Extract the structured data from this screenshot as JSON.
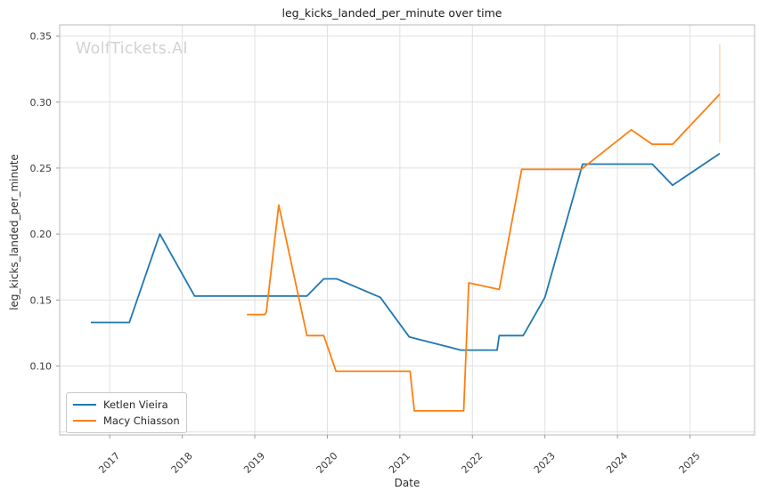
{
  "watermark": "WolfTickets.AI",
  "colors": {
    "series_blue": "#1f77b4",
    "series_orange": "#ff7f0e",
    "grid": "#e0e0e0",
    "spine": "#c4c4c4",
    "tick": "#9a9a9a",
    "tick_text": "#3a3a3a",
    "watermark": "#d2d2d2",
    "background": "#ffffff"
  },
  "chart_data": {
    "type": "line",
    "title": "leg_kicks_landed_per_minute over time",
    "xlabel": "Date",
    "ylabel": "leg_kicks_landed_per_minute",
    "x_unit": "decimal_year",
    "xlim": [
      2016.31,
      2025.89
    ],
    "ylim": [
      0.0477,
      0.3585
    ],
    "grid": true,
    "legend_position": "lower left",
    "x_ticks": [
      {
        "value": 2017,
        "label": "2017"
      },
      {
        "value": 2018,
        "label": "2018"
      },
      {
        "value": 2019,
        "label": "2019"
      },
      {
        "value": 2020,
        "label": "2020"
      },
      {
        "value": 2021,
        "label": "2021"
      },
      {
        "value": 2022,
        "label": "2022"
      },
      {
        "value": 2023,
        "label": "2023"
      },
      {
        "value": 2024,
        "label": "2024"
      },
      {
        "value": 2025,
        "label": "2025"
      }
    ],
    "y_ticks": [
      {
        "value": 0.05,
        "label": ""
      },
      {
        "value": 0.1,
        "label": "0.10"
      },
      {
        "value": 0.15,
        "label": "0.15"
      },
      {
        "value": 0.2,
        "label": "0.20"
      },
      {
        "value": 0.25,
        "label": "0.25"
      },
      {
        "value": 0.3,
        "label": "0.30"
      },
      {
        "value": 0.35,
        "label": "0.35"
      }
    ],
    "series": [
      {
        "name": "Ketlen Vieira",
        "color": "#1f77b4",
        "points": [
          [
            2016.74,
            0.133
          ],
          [
            2017.27,
            0.133
          ],
          [
            2017.69,
            0.2
          ],
          [
            2018.17,
            0.153
          ],
          [
            2019.72,
            0.153
          ],
          [
            2019.95,
            0.166
          ],
          [
            2020.13,
            0.166
          ],
          [
            2020.73,
            0.152
          ],
          [
            2021.13,
            0.122
          ],
          [
            2021.84,
            0.112
          ],
          [
            2022.34,
            0.112
          ],
          [
            2022.37,
            0.123
          ],
          [
            2022.7,
            0.123
          ],
          [
            2023.0,
            0.152
          ],
          [
            2023.52,
            0.253
          ],
          [
            2024.48,
            0.253
          ],
          [
            2024.76,
            0.237
          ],
          [
            2025.41,
            0.261
          ]
        ]
      },
      {
        "name": "Macy Chiasson",
        "color": "#ff7f0e",
        "points": [
          [
            2018.89,
            0.139
          ],
          [
            2019.14,
            0.139
          ],
          [
            2019.16,
            0.141
          ],
          [
            2019.33,
            0.222
          ],
          [
            2019.72,
            0.123
          ],
          [
            2019.95,
            0.123
          ],
          [
            2020.12,
            0.096
          ],
          [
            2021.14,
            0.096
          ],
          [
            2021.2,
            0.066
          ],
          [
            2021.88,
            0.066
          ],
          [
            2021.95,
            0.163
          ],
          [
            2022.37,
            0.158
          ],
          [
            2022.68,
            0.249
          ],
          [
            2023.5,
            0.249
          ],
          [
            2024.19,
            0.279
          ],
          [
            2024.48,
            0.268
          ],
          [
            2024.76,
            0.268
          ],
          [
            2025.41,
            0.306
          ]
        ],
        "error_bar": {
          "x": 2025.41,
          "y_low": 0.269,
          "y_high": 0.344
        }
      }
    ]
  }
}
